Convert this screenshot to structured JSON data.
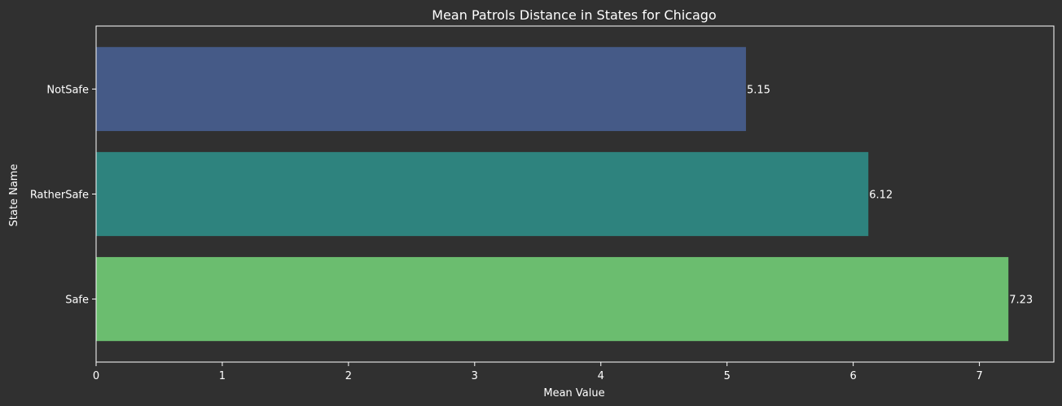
{
  "chart_data": {
    "type": "bar",
    "orientation": "horizontal",
    "title": "Mean Patrols Distance in States for Chicago",
    "xlabel": "Mean Value",
    "ylabel": "State Name",
    "categories": [
      "NotSafe",
      "RatherSafe",
      "Safe"
    ],
    "values": [
      5.15,
      6.12,
      7.23
    ],
    "value_labels": [
      "5.15",
      "6.12",
      "7.23"
    ],
    "colors": [
      "#455a87",
      "#2e837e",
      "#6bbd6f"
    ],
    "xlim": [
      0,
      7.59
    ],
    "xticks": [
      0,
      1,
      2,
      3,
      4,
      5,
      6,
      7
    ],
    "xtick_labels": [
      "0",
      "1",
      "2",
      "3",
      "4",
      "5",
      "6",
      "7"
    ],
    "grid": false,
    "legend": "none"
  },
  "theme": {
    "background": "#303030",
    "axis_color": "#ffffff",
    "text_color": "#ffffff"
  }
}
